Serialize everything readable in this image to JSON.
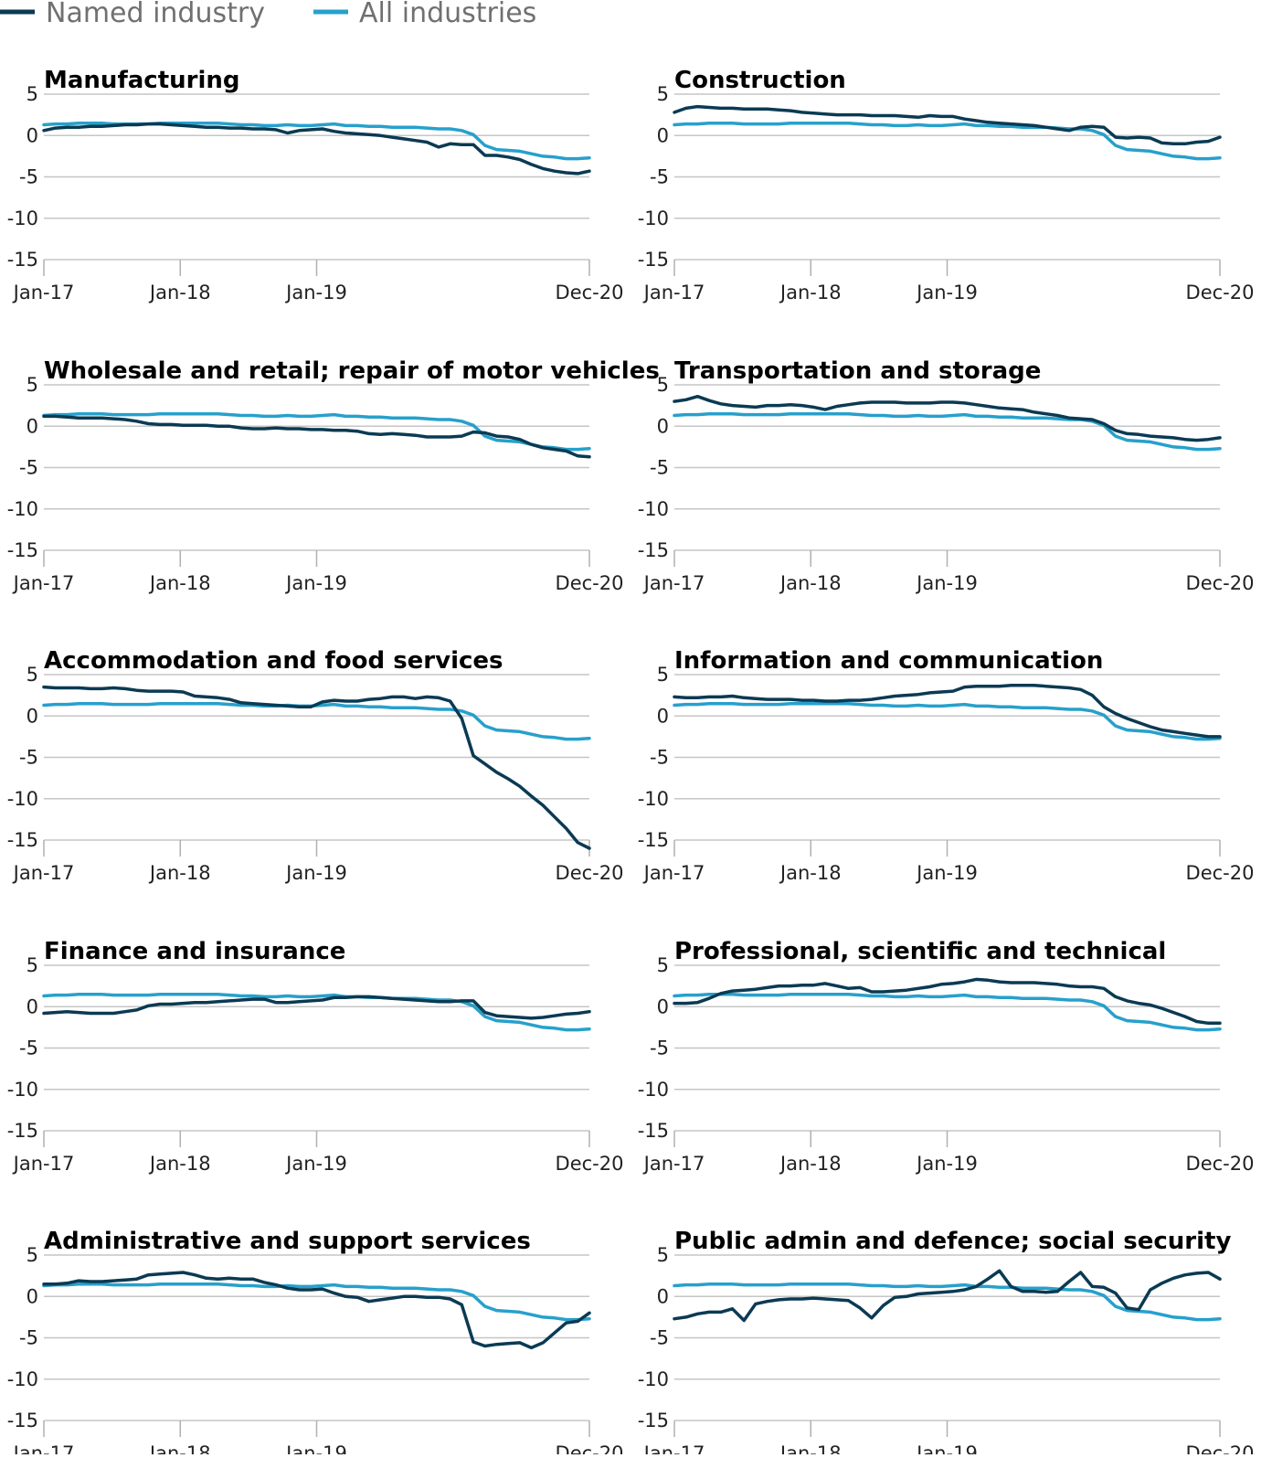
{
  "legend": [
    {
      "label": "Named industry",
      "color": "#0b3a53"
    },
    {
      "label": "All industries",
      "color": "#27a0cc"
    }
  ],
  "chart_data": {
    "type": "line",
    "x_labels": [
      "Jan-17",
      "Jan-18",
      "Jan-19",
      "Dec-20"
    ],
    "y_ticks": [
      "5",
      "0",
      "-5",
      "-10",
      "-15"
    ],
    "ylim": [
      -15,
      5
    ],
    "x_months": 48,
    "all_industries": [
      1.3,
      1.4,
      1.4,
      1.5,
      1.5,
      1.5,
      1.4,
      1.4,
      1.4,
      1.4,
      1.5,
      1.5,
      1.5,
      1.5,
      1.5,
      1.5,
      1.4,
      1.3,
      1.3,
      1.2,
      1.2,
      1.3,
      1.2,
      1.2,
      1.3,
      1.4,
      1.2,
      1.2,
      1.1,
      1.1,
      1.0,
      1.0,
      1.0,
      0.9,
      0.8,
      0.8,
      0.6,
      0.1,
      -1.2,
      -1.7,
      -1.8,
      -1.9,
      -2.2,
      -2.5,
      -2.6,
      -2.8,
      -2.8,
      -2.7
    ],
    "panels": [
      {
        "title": "Manufacturing",
        "values": [
          0.6,
          0.9,
          1.0,
          1.0,
          1.1,
          1.1,
          1.2,
          1.3,
          1.3,
          1.4,
          1.4,
          1.3,
          1.2,
          1.1,
          1.0,
          1.0,
          0.9,
          0.9,
          0.8,
          0.8,
          0.7,
          0.3,
          0.6,
          0.7,
          0.8,
          0.5,
          0.3,
          0.2,
          0.1,
          0.0,
          -0.2,
          -0.4,
          -0.6,
          -0.8,
          -1.4,
          -1.0,
          -1.1,
          -1.1,
          -2.4,
          -2.4,
          -2.6,
          -2.9,
          -3.5,
          -4.0,
          -4.3,
          -4.5,
          -4.6,
          -4.3
        ]
      },
      {
        "title": "Construction",
        "values": [
          2.8,
          3.3,
          3.5,
          3.4,
          3.3,
          3.3,
          3.2,
          3.2,
          3.2,
          3.1,
          3.0,
          2.8,
          2.7,
          2.6,
          2.5,
          2.5,
          2.5,
          2.4,
          2.4,
          2.4,
          2.3,
          2.2,
          2.4,
          2.3,
          2.3,
          2.0,
          1.8,
          1.6,
          1.5,
          1.4,
          1.3,
          1.2,
          1.0,
          0.8,
          0.6,
          1.0,
          1.1,
          1.0,
          -0.2,
          -0.3,
          -0.2,
          -0.3,
          -0.9,
          -1.0,
          -1.0,
          -0.8,
          -0.7,
          -0.2
        ]
      },
      {
        "title": "Wholesale and retail; repair of motor vehicles",
        "values": [
          1.2,
          1.2,
          1.1,
          1.0,
          1.0,
          1.0,
          0.9,
          0.8,
          0.6,
          0.3,
          0.2,
          0.2,
          0.1,
          0.1,
          0.1,
          0.0,
          0.0,
          -0.2,
          -0.3,
          -0.3,
          -0.2,
          -0.3,
          -0.3,
          -0.4,
          -0.4,
          -0.5,
          -0.5,
          -0.6,
          -0.9,
          -1.0,
          -0.9,
          -1.0,
          -1.1,
          -1.3,
          -1.3,
          -1.3,
          -1.2,
          -0.7,
          -0.8,
          -1.2,
          -1.3,
          -1.6,
          -2.2,
          -2.6,
          -2.8,
          -3.0,
          -3.6,
          -3.7
        ]
      },
      {
        "title": "Transportation and storage",
        "values": [
          3.0,
          3.2,
          3.6,
          3.1,
          2.7,
          2.5,
          2.4,
          2.3,
          2.5,
          2.5,
          2.6,
          2.5,
          2.3,
          2.0,
          2.4,
          2.6,
          2.8,
          2.9,
          2.9,
          2.9,
          2.8,
          2.8,
          2.8,
          2.9,
          2.9,
          2.8,
          2.6,
          2.4,
          2.2,
          2.1,
          2.0,
          1.7,
          1.5,
          1.3,
          1.0,
          0.9,
          0.8,
          0.3,
          -0.5,
          -0.9,
          -1.0,
          -1.2,
          -1.3,
          -1.4,
          -1.6,
          -1.7,
          -1.6,
          -1.4
        ]
      },
      {
        "title": "Accommodation and food services",
        "values": [
          3.5,
          3.4,
          3.4,
          3.4,
          3.3,
          3.3,
          3.4,
          3.3,
          3.1,
          3.0,
          3.0,
          3.0,
          2.9,
          2.4,
          2.3,
          2.2,
          2.0,
          1.6,
          1.5,
          1.4,
          1.3,
          1.2,
          1.1,
          1.1,
          1.7,
          1.9,
          1.8,
          1.8,
          2.0,
          2.1,
          2.3,
          2.3,
          2.1,
          2.3,
          2.2,
          1.8,
          -0.3,
          -4.8,
          -5.8,
          -6.8,
          -7.6,
          -8.5,
          -9.7,
          -10.8,
          -12.2,
          -13.6,
          -15.3,
          -16.0
        ]
      },
      {
        "title": "Information and communication",
        "values": [
          2.3,
          2.2,
          2.2,
          2.3,
          2.3,
          2.4,
          2.2,
          2.1,
          2.0,
          2.0,
          2.0,
          1.9,
          1.9,
          1.8,
          1.8,
          1.9,
          1.9,
          2.0,
          2.2,
          2.4,
          2.5,
          2.6,
          2.8,
          2.9,
          3.0,
          3.5,
          3.6,
          3.6,
          3.6,
          3.7,
          3.7,
          3.7,
          3.6,
          3.5,
          3.4,
          3.2,
          2.5,
          1.1,
          0.3,
          -0.3,
          -0.8,
          -1.3,
          -1.7,
          -1.9,
          -2.1,
          -2.3,
          -2.5,
          -2.5
        ]
      },
      {
        "title": "Finance and insurance",
        "values": [
          -0.8,
          -0.7,
          -0.6,
          -0.7,
          -0.8,
          -0.8,
          -0.8,
          -0.6,
          -0.4,
          0.1,
          0.3,
          0.3,
          0.4,
          0.5,
          0.5,
          0.6,
          0.7,
          0.8,
          0.9,
          0.9,
          0.5,
          0.5,
          0.6,
          0.7,
          0.8,
          1.1,
          1.1,
          1.2,
          1.2,
          1.1,
          1.0,
          0.9,
          0.8,
          0.7,
          0.6,
          0.6,
          0.7,
          0.7,
          -0.7,
          -1.1,
          -1.2,
          -1.3,
          -1.4,
          -1.3,
          -1.1,
          -0.9,
          -0.8,
          -0.6
        ]
      },
      {
        "title": "Professional, scientific and technical",
        "values": [
          0.4,
          0.4,
          0.5,
          1.0,
          1.6,
          1.9,
          2.0,
          2.1,
          2.3,
          2.5,
          2.5,
          2.6,
          2.6,
          2.8,
          2.5,
          2.2,
          2.3,
          1.8,
          1.8,
          1.9,
          2.0,
          2.2,
          2.4,
          2.7,
          2.8,
          3.0,
          3.3,
          3.2,
          3.0,
          2.9,
          2.9,
          2.9,
          2.8,
          2.7,
          2.5,
          2.4,
          2.4,
          2.2,
          1.2,
          0.7,
          0.4,
          0.2,
          -0.2,
          -0.7,
          -1.2,
          -1.8,
          -2.0,
          -2.0
        ]
      },
      {
        "title": "Administrative and support services",
        "values": [
          1.5,
          1.5,
          1.6,
          1.9,
          1.8,
          1.8,
          1.9,
          2.0,
          2.1,
          2.6,
          2.7,
          2.8,
          2.9,
          2.6,
          2.2,
          2.1,
          2.2,
          2.1,
          2.1,
          1.7,
          1.4,
          1.0,
          0.8,
          0.8,
          0.9,
          0.4,
          0.0,
          -0.1,
          -0.6,
          -0.4,
          -0.2,
          0.0,
          0.0,
          -0.1,
          -0.1,
          -0.3,
          -1.0,
          -5.5,
          -6.0,
          -5.8,
          -5.7,
          -5.6,
          -6.2,
          -5.6,
          -4.4,
          -3.2,
          -3.0,
          -2.0
        ]
      },
      {
        "title": "Public admin and defence; social security",
        "values": [
          -2.7,
          -2.5,
          -2.1,
          -1.9,
          -1.9,
          -1.5,
          -2.9,
          -0.9,
          -0.6,
          -0.4,
          -0.3,
          -0.3,
          -0.2,
          -0.3,
          -0.4,
          -0.5,
          -1.4,
          -2.6,
          -1.1,
          -0.1,
          0.0,
          0.3,
          0.4,
          0.5,
          0.6,
          0.8,
          1.2,
          2.1,
          3.1,
          1.2,
          0.6,
          0.6,
          0.5,
          0.6,
          1.8,
          2.9,
          1.2,
          1.1,
          0.4,
          -1.4,
          -1.6,
          0.8,
          1.6,
          2.2,
          2.6,
          2.8,
          2.9,
          2.1
        ]
      }
    ]
  }
}
